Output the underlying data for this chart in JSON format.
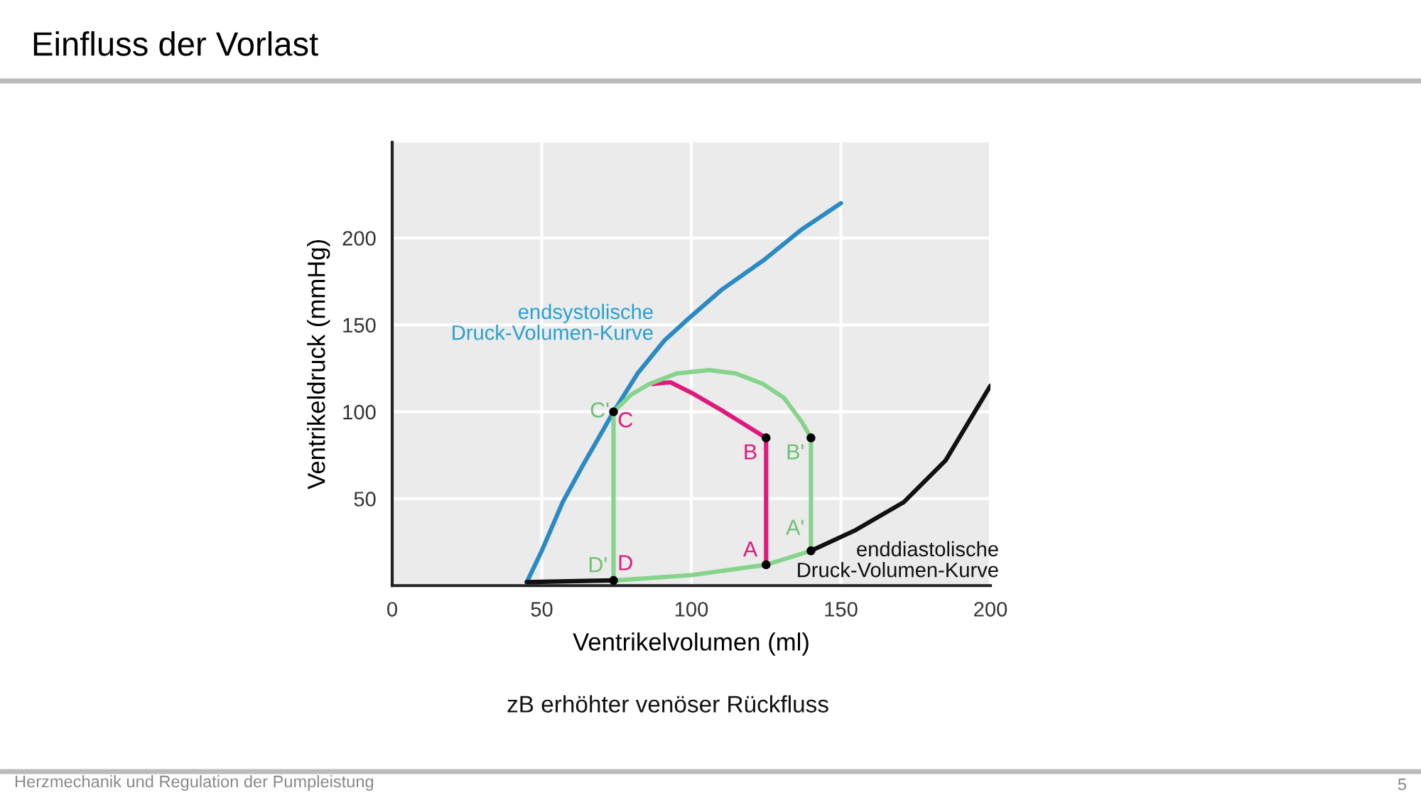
{
  "chart_data": {
    "type": "line",
    "title": "Einfluss der Vorlast",
    "xlabel": "Ventrikelvolumen (ml)",
    "ylabel": "Ventrikeldruck (mmHg)",
    "xlim": [
      0,
      200
    ],
    "xticks": [
      0,
      50,
      100,
      150,
      200
    ],
    "ylim": [
      0,
      255
    ],
    "yticks": [
      50,
      100,
      150,
      200
    ],
    "grid": true,
    "legend": false,
    "series": [
      {
        "color": "#2a8ac4",
        "x": [
          45,
          50,
          57,
          64,
          70,
          74,
          82,
          91,
          98,
          110,
          124,
          137,
          150
        ],
        "values": [
          2,
          20,
          48,
          70,
          88,
          100,
          122,
          141,
          152,
          170,
          187,
          205,
          220
        ]
      },
      {
        "color": "#86d48c",
        "x": [
          74,
          74,
          80,
          86,
          95,
          106,
          115,
          124,
          131,
          137,
          140,
          140,
          125,
          100,
          75
        ],
        "values": [
          3,
          100,
          110,
          116,
          122,
          124,
          122,
          116,
          108,
          94,
          85,
          20,
          12,
          6,
          3
        ]
      },
      {
        "color": "#e0197d",
        "x": [
          125,
          125,
          110,
          100,
          93,
          87
        ],
        "values": [
          12,
          85,
          101,
          111,
          117,
          116
        ]
      },
      {
        "color": "#111111",
        "x": [
          45,
          74,
          null,
          140,
          155,
          171,
          185,
          200
        ],
        "values": [
          2,
          3,
          null,
          20,
          32,
          48,
          72,
          115
        ]
      },
      {
        "type": "scatter",
        "color": "#000000",
        "marker": "circle",
        "x": [
          125,
          125,
          74,
          74,
          140,
          140
        ],
        "values": [
          12,
          85,
          100,
          3,
          85,
          20
        ]
      }
    ],
    "annotations": [
      "endsystolische\nDruck-Volumen-Kurve",
      "enddiastolische\nDruck-Volumen-Kurve",
      {
        "text": "C",
        "x": 74,
        "y": 100
      },
      {
        "text": "C'",
        "x": 74,
        "y": 100
      },
      {
        "text": "B",
        "x": 125,
        "y": 85
      },
      {
        "text": "B'",
        "x": 140,
        "y": 85
      },
      {
        "text": "A",
        "x": 125,
        "y": 12
      },
      {
        "text": "A'",
        "x": 140,
        "y": 20
      },
      {
        "text": "D",
        "x": 74,
        "y": 3
      },
      {
        "text": "D'",
        "x": 74,
        "y": 3
      },
      "zB erhöhter venöser Rückfluss",
      "Herzmechanik und Regulation der Pumpleistung",
      "5"
    ]
  }
}
